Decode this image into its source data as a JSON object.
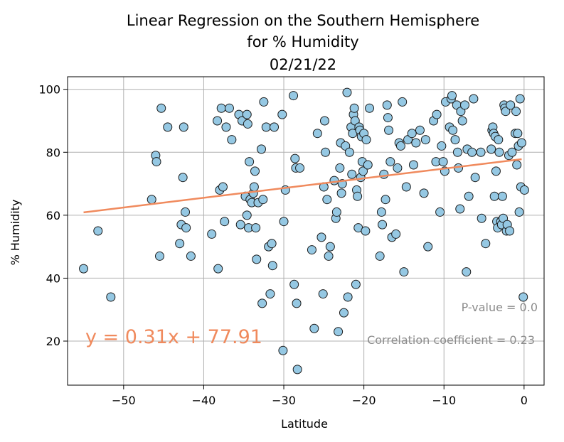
{
  "chart_data": {
    "type": "scatter",
    "title": [
      "Linear Regression on the Southern Hemisphere",
      "for % Humidity",
      "02/21/22"
    ],
    "xlabel": "Latitude",
    "ylabel": "% Humidity",
    "xlim": [
      -57,
      2.5
    ],
    "ylim": [
      6,
      104
    ],
    "xticks": [
      -50,
      -40,
      -30,
      -20,
      -10,
      0
    ],
    "yticks": [
      20,
      40,
      60,
      80,
      100
    ],
    "grid": true,
    "colors": {
      "point_fill": "#95c8e3",
      "point_edge": "#1a1a1a",
      "regression_line": "#f08a5d"
    },
    "regression": {
      "x": [
        -55,
        -0.3
      ],
      "y": [
        60.9,
        77.8
      ]
    },
    "annotations": {
      "equation": "y = 0.31x + 77.91",
      "p_value": "P-value = 0.0",
      "correlation": "Correlation coefficient = 0.23"
    },
    "points": [
      [
        -55,
        43
      ],
      [
        -53.2,
        55
      ],
      [
        -51.6,
        34
      ],
      [
        -46.5,
        65
      ],
      [
        -46,
        79
      ],
      [
        -45.9,
        77
      ],
      [
        -45.5,
        47
      ],
      [
        -45.3,
        94
      ],
      [
        -44.5,
        88
      ],
      [
        -43,
        51
      ],
      [
        -42.8,
        57
      ],
      [
        -42.6,
        72
      ],
      [
        -42.5,
        88
      ],
      [
        -42.3,
        61
      ],
      [
        -42.2,
        56
      ],
      [
        -41.6,
        47
      ],
      [
        -39,
        54
      ],
      [
        -38.3,
        90
      ],
      [
        -38.2,
        43
      ],
      [
        -38,
        68
      ],
      [
        -37.8,
        94
      ],
      [
        -37.6,
        69
      ],
      [
        -37.4,
        58
      ],
      [
        -37.2,
        88
      ],
      [
        -36.8,
        94
      ],
      [
        -36.5,
        84
      ],
      [
        -35.6,
        92
      ],
      [
        -35.4,
        57
      ],
      [
        -35.2,
        90
      ],
      [
        -34.8,
        66
      ],
      [
        -34.6,
        92
      ],
      [
        -34.6,
        60
      ],
      [
        -34.5,
        89
      ],
      [
        -34.4,
        56
      ],
      [
        -34.3,
        77
      ],
      [
        -34.2,
        65
      ],
      [
        -34,
        64
      ],
      [
        -33.8,
        67
      ],
      [
        -33.7,
        69
      ],
      [
        -33.6,
        74
      ],
      [
        -33.5,
        56
      ],
      [
        -33.4,
        46
      ],
      [
        -33.2,
        64
      ],
      [
        -32.8,
        81
      ],
      [
        -32.7,
        32
      ],
      [
        -32.6,
        65
      ],
      [
        -32.5,
        96
      ],
      [
        -32.2,
        88
      ],
      [
        -31.9,
        50
      ],
      [
        -31.7,
        35
      ],
      [
        -31.5,
        51
      ],
      [
        -31.4,
        44
      ],
      [
        -31.2,
        88
      ],
      [
        -30.2,
        92
      ],
      [
        -30.1,
        17
      ],
      [
        -30,
        58
      ],
      [
        -29.8,
        68
      ],
      [
        -28.8,
        98
      ],
      [
        -28.7,
        38
      ],
      [
        -28.6,
        78
      ],
      [
        -28.5,
        75
      ],
      [
        -28.4,
        32
      ],
      [
        -28.3,
        11
      ],
      [
        -28,
        75
      ],
      [
        -26.5,
        49
      ],
      [
        -26.2,
        24
      ],
      [
        -25.8,
        86
      ],
      [
        -25.3,
        53
      ],
      [
        -25.1,
        35
      ],
      [
        -25,
        69
      ],
      [
        -24.9,
        90
      ],
      [
        -24.8,
        80
      ],
      [
        -24.6,
        65
      ],
      [
        -24.4,
        47
      ],
      [
        -24.2,
        50
      ],
      [
        -23.7,
        71
      ],
      [
        -23.5,
        59
      ],
      [
        -23.4,
        61
      ],
      [
        -23.2,
        23
      ],
      [
        -23,
        75
      ],
      [
        -22.9,
        83
      ],
      [
        -22.8,
        67
      ],
      [
        -22.7,
        70
      ],
      [
        -22.5,
        29
      ],
      [
        -22.3,
        82
      ],
      [
        -22.1,
        99
      ],
      [
        -22,
        34
      ],
      [
        -21.8,
        80
      ],
      [
        -21.6,
        88
      ],
      [
        -21.5,
        73
      ],
      [
        -21.4,
        86
      ],
      [
        -21.3,
        92
      ],
      [
        -21.2,
        94
      ],
      [
        -21.1,
        90
      ],
      [
        -21,
        38
      ],
      [
        -20.9,
        68
      ],
      [
        -20.8,
        66
      ],
      [
        -20.7,
        56
      ],
      [
        -20.6,
        88
      ],
      [
        -20.5,
        87
      ],
      [
        -20.4,
        72
      ],
      [
        -20.3,
        85
      ],
      [
        -20.2,
        77
      ],
      [
        -20.1,
        74
      ],
      [
        -20,
        86
      ],
      [
        -19.8,
        55
      ],
      [
        -19.7,
        84
      ],
      [
        -19.5,
        76
      ],
      [
        -19.3,
        94
      ],
      [
        -18,
        47
      ],
      [
        -17.8,
        61
      ],
      [
        -17.7,
        57
      ],
      [
        -17.5,
        73
      ],
      [
        -17.3,
        65
      ],
      [
        -17.1,
        95
      ],
      [
        -17,
        91
      ],
      [
        -16.9,
        87
      ],
      [
        -16.7,
        77
      ],
      [
        -16.5,
        53
      ],
      [
        -16,
        54
      ],
      [
        -15.8,
        75
      ],
      [
        -15.6,
        83
      ],
      [
        -15.4,
        82
      ],
      [
        -15.2,
        96
      ],
      [
        -15,
        42
      ],
      [
        -14.7,
        69
      ],
      [
        -14.5,
        84
      ],
      [
        -14,
        86
      ],
      [
        -13.8,
        76
      ],
      [
        -13.5,
        83
      ],
      [
        -13,
        87
      ],
      [
        -12.5,
        67
      ],
      [
        -12.3,
        84
      ],
      [
        -12,
        50
      ],
      [
        -11.3,
        90
      ],
      [
        -11,
        77
      ],
      [
        -10.9,
        92
      ],
      [
        -10.5,
        61
      ],
      [
        -10.3,
        82
      ],
      [
        -10.1,
        77
      ],
      [
        -9.9,
        74
      ],
      [
        -9.8,
        96
      ],
      [
        -9.3,
        88
      ],
      [
        -9.1,
        97
      ],
      [
        -9,
        98
      ],
      [
        -8.9,
        87
      ],
      [
        -8.6,
        84
      ],
      [
        -8.4,
        95
      ],
      [
        -8.3,
        80
      ],
      [
        -8.2,
        75
      ],
      [
        -8,
        62
      ],
      [
        -7.9,
        93
      ],
      [
        -7.7,
        90
      ],
      [
        -7.4,
        95
      ],
      [
        -7.2,
        42
      ],
      [
        -7.1,
        81
      ],
      [
        -6.9,
        66
      ],
      [
        -6.5,
        80
      ],
      [
        -6.3,
        97
      ],
      [
        -6.1,
        72
      ],
      [
        -5.4,
        80
      ],
      [
        -5.3,
        59
      ],
      [
        -4.8,
        51
      ],
      [
        -4.1,
        81
      ],
      [
        -4,
        87
      ],
      [
        -3.9,
        88
      ],
      [
        -3.8,
        86
      ],
      [
        -3.7,
        66
      ],
      [
        -3.6,
        85
      ],
      [
        -3.5,
        74
      ],
      [
        -3.4,
        58
      ],
      [
        -3.3,
        56
      ],
      [
        -3.2,
        84
      ],
      [
        -3.1,
        80
      ],
      [
        -2.9,
        58
      ],
      [
        -2.8,
        57
      ],
      [
        -2.7,
        66
      ],
      [
        -2.6,
        59
      ],
      [
        -2.5,
        95
      ],
      [
        -2.4,
        94
      ],
      [
        -2.3,
        93
      ],
      [
        -2.2,
        55
      ],
      [
        -2.1,
        57
      ],
      [
        -1.9,
        79
      ],
      [
        -1.8,
        55
      ],
      [
        -1.7,
        95
      ],
      [
        -1.5,
        80
      ],
      [
        -1.1,
        86
      ],
      [
        -1,
        93
      ],
      [
        -0.9,
        76
      ],
      [
        -0.8,
        86
      ],
      [
        -0.7,
        82
      ],
      [
        -0.6,
        61
      ],
      [
        -0.5,
        97
      ],
      [
        -0.4,
        69
      ],
      [
        -0.3,
        83
      ],
      [
        -0.1,
        34
      ],
      [
        0.05,
        68
      ]
    ]
  }
}
